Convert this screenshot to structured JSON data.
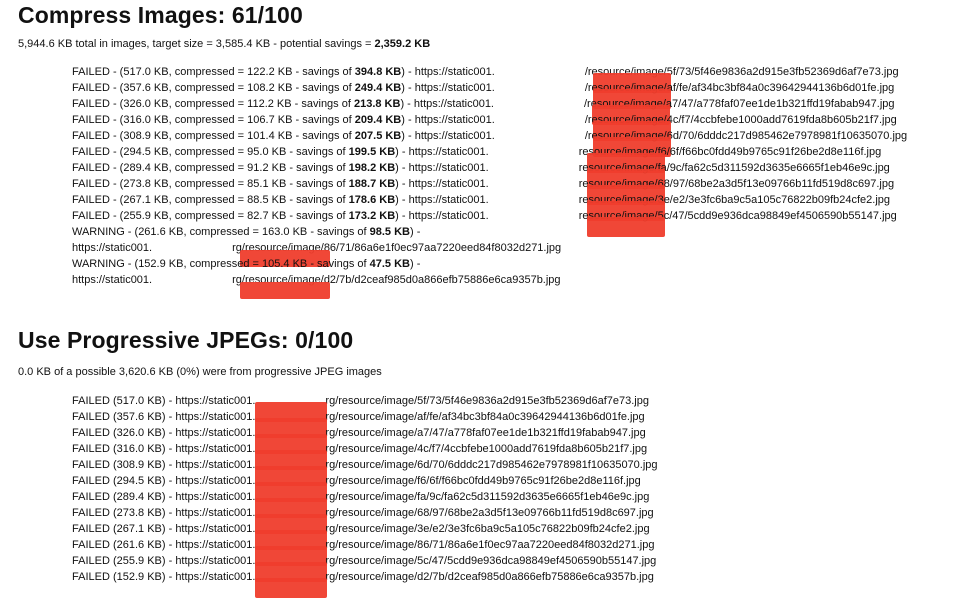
{
  "compress": {
    "title": "Compress Images: 61/100",
    "summary_prefix": "5,944.6 KB total in images, target size = 3,585.4 KB - potential savings = ",
    "summary_savings": "2,359.2 KB",
    "rows": [
      {
        "head": "FAILED - (517.0 KB, compressed = 122.2 KB - savings of ",
        "savings": "394.8 KB",
        "mid": ") - https://static001.",
        "tail": "/resource/image/5f/73/5f46e9836a2d915e3fb52369d6af7e73.jpg"
      },
      {
        "head": "FAILED - (357.6 KB, compressed = 108.2 KB - savings of ",
        "savings": "249.4 KB",
        "mid": ") - https://static001.",
        "tail": "/resource/image/af/fe/af34bc3bf84a0c39642944136b6d01fe.jpg"
      },
      {
        "head": "FAILED - (326.0 KB, compressed = 112.2 KB - savings of ",
        "savings": "213.8 KB",
        "mid": ") - https://static001.",
        "tail": "/resource/image/a7/47/a778faf07ee1de1b321ffd19fabab947.jpg"
      },
      {
        "head": "FAILED - (316.0 KB, compressed = 106.7 KB - savings of ",
        "savings": "209.4 KB",
        "mid": ") - https://static001.",
        "tail": "/resource/image/4c/f7/4ccbfebe1000add7619fda8b605b21f7.jpg"
      },
      {
        "head": "FAILED - (308.9 KB, compressed = 101.4 KB - savings of ",
        "savings": "207.5 KB",
        "mid": ") - https://static001.",
        "tail": "/resource/image/6d/70/6dddc217d985462e7978981f10635070.jpg"
      },
      {
        "head": "FAILED - (294.5 KB, compressed = 95.0 KB - savings of ",
        "savings": "199.5 KB",
        "mid": ") - https://static001.",
        "tail": "resource/image/f6/6f/f66bc0fdd49b9765c91f26be2d8e116f.jpg"
      },
      {
        "head": "FAILED - (289.4 KB, compressed = 91.2 KB - savings of ",
        "savings": "198.2 KB",
        "mid": ") - https://static001.",
        "tail": "resource/image/fa/9c/fa62c5d311592d3635e6665f1eb46e9c.jpg"
      },
      {
        "head": "FAILED - (273.8 KB, compressed = 85.1 KB - savings of ",
        "savings": "188.7 KB",
        "mid": ") - https://static001.",
        "tail": "resource/image/68/97/68be2a3d5f13e09766b11fd519d8c697.jpg"
      },
      {
        "head": "FAILED - (267.1 KB, compressed = 88.5 KB - savings of ",
        "savings": "178.6 KB",
        "mid": ") - https://static001.",
        "tail": "resource/image/3e/e2/3e3fc6ba9c5a105c76822b09fb24cfe2.jpg"
      },
      {
        "head": "FAILED - (255.9 KB, compressed = 82.7 KB - savings of ",
        "savings": "173.2 KB",
        "mid": ") - https://static001.",
        "tail": "resource/image/5c/47/5cdd9e936dca98849ef4506590b55147.jpg"
      }
    ],
    "warnings": [
      {
        "head": "WARNING - (261.6 KB, compressed = 163.0 KB - savings of ",
        "savings": "98.5 KB",
        "end": ") -",
        "url_start": "https://static001.",
        "url_tail": "rg/resource/image/86/71/86a6e1f0ec97aa7220eed84f8032d271.jpg"
      },
      {
        "head": "WARNING - (152.9 KB, compressed = 105.4 KB - savings of ",
        "savings": "47.5 KB",
        "end": ") -",
        "url_start": "https://static001.",
        "url_tail": "rg/resource/image/d2/7b/d2ceaf985d0a866efb75886e6ca9357b.jpg"
      }
    ]
  },
  "progressive": {
    "title": "Use Progressive JPEGs: 0/100",
    "summary": "0.0 KB of a possible 3,620.6 KB (0%) were from progressive JPEG images",
    "rows": [
      {
        "head": "FAILED (517.0 KB) - https://static001.",
        "tail": "rg/resource/image/5f/73/5f46e9836a2d915e3fb52369d6af7e73.jpg"
      },
      {
        "head": "FAILED (357.6 KB) - https://static001.",
        "tail": "rg/resource/image/af/fe/af34bc3bf84a0c39642944136b6d01fe.jpg"
      },
      {
        "head": "FAILED (326.0 KB) - https://static001.",
        "tail": "rg/resource/image/a7/47/a778faf07ee1de1b321ffd19fabab947.jpg"
      },
      {
        "head": "FAILED (316.0 KB) - https://static001.",
        "tail": "rg/resource/image/4c/f7/4ccbfebe1000add7619fda8b605b21f7.jpg"
      },
      {
        "head": "FAILED (308.9 KB) - https://static001.",
        "tail": "rg/resource/image/6d/70/6dddc217d985462e7978981f10635070.jpg"
      },
      {
        "head": "FAILED (294.5 KB) - https://static001.",
        "tail": "rg/resource/image/f6/6f/f66bc0fdd49b9765c91f26be2d8e116f.jpg"
      },
      {
        "head": "FAILED (289.4 KB) - https://static001.",
        "tail": "rg/resource/image/fa/9c/fa62c5d311592d3635e6665f1eb46e9c.jpg"
      },
      {
        "head": "FAILED (273.8 KB) - https://static001.",
        "tail": "rg/resource/image/68/97/68be2a3d5f13e09766b11fd519d8c697.jpg"
      },
      {
        "head": "FAILED (267.1 KB) - https://static001.",
        "tail": "rg/resource/image/3e/e2/3e3fc6ba9c5a105c76822b09fb24cfe2.jpg"
      },
      {
        "head": "FAILED (261.6 KB) - https://static001.",
        "tail": "rg/resource/image/86/71/86a6e1f0ec97aa7220eed84f8032d271.jpg"
      },
      {
        "head": "FAILED (255.9 KB) - https://static001.",
        "tail": "rg/resource/image/5c/47/5cdd9e936dca98849ef4506590b55147.jpg"
      },
      {
        "head": "FAILED (152.9 KB) - https://static001.",
        "tail": "rg/resource/image/d2/7b/d2ceaf985d0a866efb75886e6ca9357b.jpg"
      }
    ]
  },
  "colors": {
    "redaction": "#ef3d2c"
  }
}
